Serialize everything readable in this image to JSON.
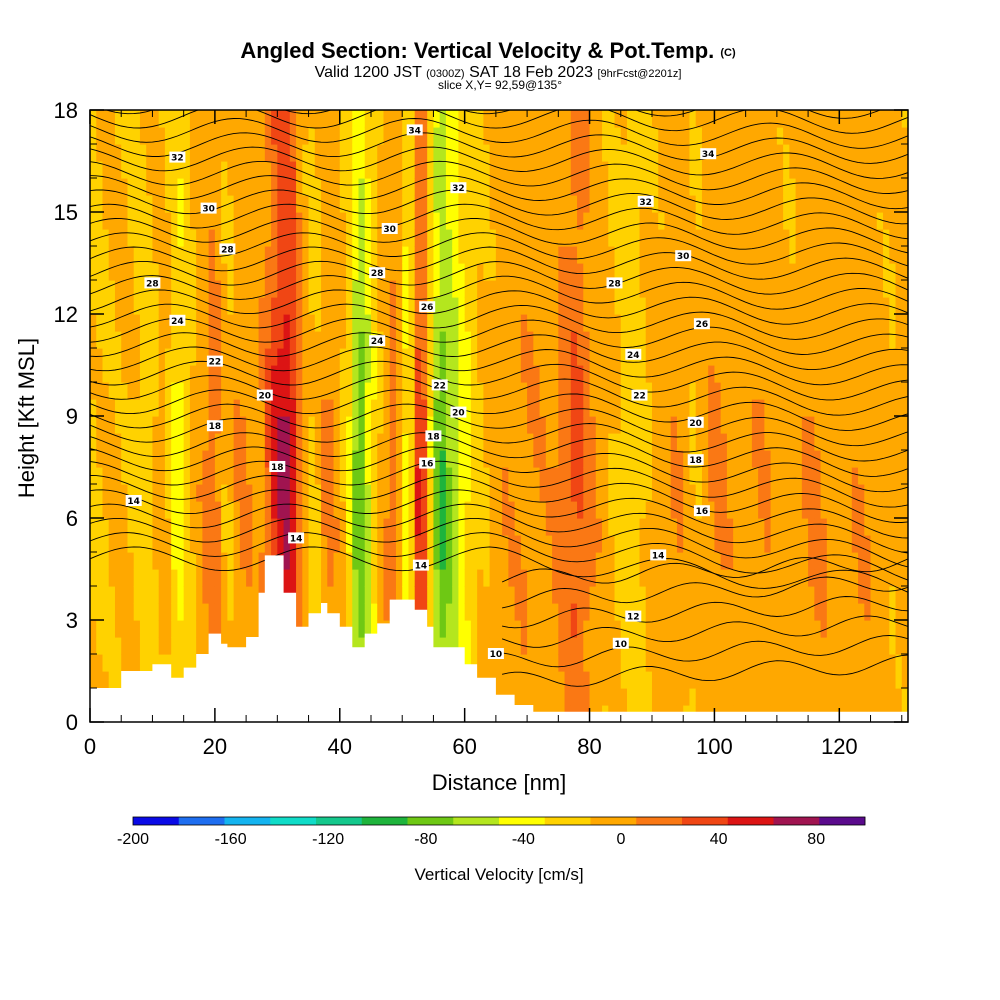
{
  "title": {
    "main": "Angled Section: Vertical Velocity & Pot.Temp.",
    "main_unit": "(C)",
    "valid_prefix": "Valid 1200 JST",
    "valid_utc": "(0300Z)",
    "valid_date": "SAT 18 Feb 2023",
    "forecast": "[9hrFcst@2201z]",
    "slice": "slice X,Y= 92,59@135°"
  },
  "chart_data": {
    "type": "heatmap",
    "xlabel": "Distance [nm]",
    "ylabel": "Height [Kft MSL]",
    "xlim": [
      0,
      131
    ],
    "ylim": [
      0,
      18
    ],
    "x_ticks": [
      "0",
      "20",
      "40",
      "60",
      "80",
      "100",
      "120"
    ],
    "y_ticks": [
      "0",
      "3",
      "6",
      "9",
      "12",
      "15",
      "18"
    ],
    "colorbar": {
      "label": "Vertical Velocity [cm/s]",
      "range": [
        -200,
        100
      ],
      "step": 20,
      "tick_labels": [
        "-200",
        "-160",
        "-120",
        "-80",
        "-40",
        "0",
        "40",
        "80"
      ],
      "colors": [
        "#0a0ae6",
        "#1e6ef0",
        "#14b4f0",
        "#10dcc8",
        "#14c88c",
        "#1eb43c",
        "#6ec814",
        "#b4e61e",
        "#ffff00",
        "#ffd200",
        "#ffa800",
        "#fa7814",
        "#f04614",
        "#dc1414",
        "#a01450",
        "#5a0a8c"
      ]
    },
    "terrain": [
      [
        0,
        1
      ],
      [
        5,
        1
      ],
      [
        5,
        1.5
      ],
      [
        10,
        1.5
      ],
      [
        10,
        1.7
      ],
      [
        13,
        1.7
      ],
      [
        13,
        1.3
      ],
      [
        15,
        1.3
      ],
      [
        15,
        1.6
      ],
      [
        17,
        1.6
      ],
      [
        17,
        2
      ],
      [
        19,
        2
      ],
      [
        19,
        2.6
      ],
      [
        21,
        2.6
      ],
      [
        21,
        2.3
      ],
      [
        22,
        2.3
      ],
      [
        22,
        2.2
      ],
      [
        25,
        2.2
      ],
      [
        25,
        2.5
      ],
      [
        27,
        2.5
      ],
      [
        27,
        3.8
      ],
      [
        28,
        3.8
      ],
      [
        28,
        4.9
      ],
      [
        31,
        4.9
      ],
      [
        31,
        3.8
      ],
      [
        33,
        3.8
      ],
      [
        33,
        2.8
      ],
      [
        35,
        2.8
      ],
      [
        35,
        3.2
      ],
      [
        37,
        3.2
      ],
      [
        37,
        3.5
      ],
      [
        38,
        3.5
      ],
      [
        38,
        3.2
      ],
      [
        40,
        3.2
      ],
      [
        40,
        2.8
      ],
      [
        42,
        2.8
      ],
      [
        42,
        2.2
      ],
      [
        44,
        2.2
      ],
      [
        44,
        2.6
      ],
      [
        46,
        2.6
      ],
      [
        46,
        2.9
      ],
      [
        48,
        2.9
      ],
      [
        48,
        3.6
      ],
      [
        52,
        3.6
      ],
      [
        52,
        3.3
      ],
      [
        54,
        3.3
      ],
      [
        54,
        2.8
      ],
      [
        55,
        2.8
      ],
      [
        55,
        2.2
      ],
      [
        57,
        2.2
      ],
      [
        57,
        2.2
      ],
      [
        60,
        2.2
      ],
      [
        60,
        1.7
      ],
      [
        62,
        1.7
      ],
      [
        62,
        1.3
      ],
      [
        65,
        1.3
      ],
      [
        65,
        0.8
      ],
      [
        68,
        0.8
      ],
      [
        68,
        0.5
      ],
      [
        71,
        0.5
      ],
      [
        71,
        0.3
      ],
      [
        131,
        0.3
      ]
    ],
    "velocity_columns": [
      [
        0,
        -5
      ],
      [
        5,
        5
      ],
      [
        9,
        -10
      ],
      [
        12,
        10
      ],
      [
        14,
        -35
      ],
      [
        17,
        10
      ],
      [
        20,
        35
      ],
      [
        22,
        -5
      ],
      [
        24,
        25
      ],
      [
        27,
        10
      ],
      [
        30,
        75
      ],
      [
        32,
        90
      ],
      [
        34,
        15
      ],
      [
        36,
        -10
      ],
      [
        38,
        30
      ],
      [
        40,
        10
      ],
      [
        42,
        -30
      ],
      [
        43,
        -90
      ],
      [
        45,
        -30
      ],
      [
        47,
        15
      ],
      [
        49,
        30
      ],
      [
        51,
        -45
      ],
      [
        53,
        90
      ],
      [
        54,
        10
      ],
      [
        56,
        -90
      ],
      [
        58,
        -55
      ],
      [
        60,
        -30
      ],
      [
        62,
        -5
      ],
      [
        66,
        15
      ],
      [
        70,
        20
      ],
      [
        74,
        15
      ],
      [
        78,
        50
      ],
      [
        80,
        25
      ],
      [
        83,
        5
      ],
      [
        87,
        -15
      ],
      [
        90,
        5
      ],
      [
        94,
        20
      ],
      [
        97,
        0
      ],
      [
        100,
        25
      ],
      [
        104,
        10
      ],
      [
        108,
        20
      ],
      [
        112,
        5
      ],
      [
        116,
        25
      ],
      [
        120,
        10
      ],
      [
        124,
        20
      ],
      [
        128,
        5
      ],
      [
        131,
        10
      ]
    ],
    "isentrope_labels": [
      {
        "text": "34",
        "x": 52,
        "y": 17.4
      },
      {
        "text": "34",
        "x": 99,
        "y": 16.7
      },
      {
        "text": "32",
        "x": 14,
        "y": 16.6
      },
      {
        "text": "32",
        "x": 59,
        "y": 15.7
      },
      {
        "text": "32",
        "x": 89,
        "y": 15.3
      },
      {
        "text": "30",
        "x": 19,
        "y": 15.1
      },
      {
        "text": "30",
        "x": 48,
        "y": 14.5
      },
      {
        "text": "30",
        "x": 95,
        "y": 13.7
      },
      {
        "text": "28",
        "x": 22,
        "y": 13.9
      },
      {
        "text": "28",
        "x": 46,
        "y": 13.2
      },
      {
        "text": "28",
        "x": 84,
        "y": 12.9
      },
      {
        "text": "28",
        "x": 10,
        "y": 12.9
      },
      {
        "text": "26",
        "x": 54,
        "y": 12.2
      },
      {
        "text": "26",
        "x": 98,
        "y": 11.7
      },
      {
        "text": "24",
        "x": 14,
        "y": 11.8
      },
      {
        "text": "24",
        "x": 46,
        "y": 11.2
      },
      {
        "text": "24",
        "x": 87,
        "y": 10.8
      },
      {
        "text": "22",
        "x": 20,
        "y": 10.6
      },
      {
        "text": "22",
        "x": 56,
        "y": 9.9
      },
      {
        "text": "22",
        "x": 88,
        "y": 9.6
      },
      {
        "text": "20",
        "x": 28,
        "y": 9.6
      },
      {
        "text": "20",
        "x": 59,
        "y": 9.1
      },
      {
        "text": "20",
        "x": 97,
        "y": 8.8
      },
      {
        "text": "18",
        "x": 20,
        "y": 8.7
      },
      {
        "text": "18",
        "x": 55,
        "y": 8.4
      },
      {
        "text": "18",
        "x": 97,
        "y": 7.7
      },
      {
        "text": "18",
        "x": 30,
        "y": 7.5
      },
      {
        "text": "16",
        "x": 54,
        "y": 7.6
      },
      {
        "text": "16",
        "x": 98,
        "y": 6.2
      },
      {
        "text": "14",
        "x": 7,
        "y": 6.5
      },
      {
        "text": "14",
        "x": 33,
        "y": 5.4
      },
      {
        "text": "14",
        "x": 53,
        "y": 4.6
      },
      {
        "text": "14",
        "x": 91,
        "y": 4.9
      },
      {
        "text": "12",
        "x": 87,
        "y": 3.1
      },
      {
        "text": "10",
        "x": 65,
        "y": 2.0
      },
      {
        "text": "10",
        "x": 85,
        "y": 2.3
      }
    ]
  }
}
